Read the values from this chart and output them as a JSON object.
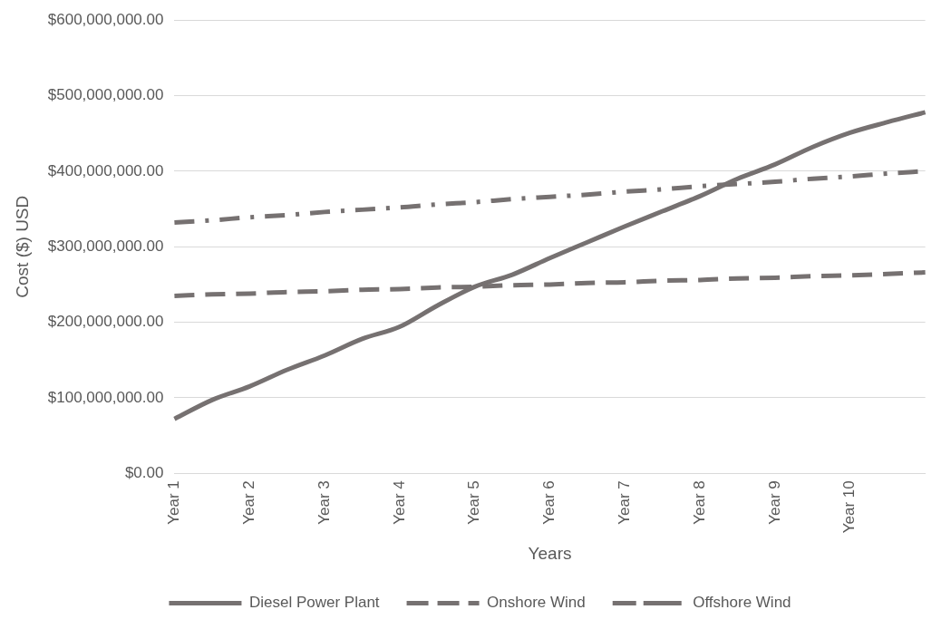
{
  "chart_data": {
    "type": "line",
    "xlabel": "Years",
    "ylabel": "Cost ($) USD",
    "categories": [
      "Year 1",
      null,
      "Year 2",
      null,
      "Year 3",
      null,
      "Year 4",
      null,
      "Year 5",
      null,
      "Year 6",
      null,
      "Year 7",
      null,
      "Year 8",
      null,
      "Year 9",
      null,
      "Year 10",
      null,
      null
    ],
    "series": [
      {
        "name": "Diesel Power Plant",
        "color": "#767171",
        "line_style": "solid",
        "values": [
          72000000,
          97000000,
          115000000,
          137000000,
          156000000,
          178000000,
          194000000,
          222000000,
          247000000,
          263000000,
          285000000,
          306000000,
          327000000,
          347000000,
          367000000,
          390000000,
          409000000,
          432000000,
          451000000,
          465000000,
          478000000
        ]
      },
      {
        "name": "Onshore Wind",
        "color": "#767171",
        "line_style": "dashed",
        "values": [
          235000000,
          237000000,
          238000000,
          240000000,
          241000000,
          243000000,
          244000000,
          246000000,
          247000000,
          249000000,
          250000000,
          252000000,
          253000000,
          255000000,
          256000000,
          258000000,
          259000000,
          261000000,
          262000000,
          264000000,
          266000000
        ]
      },
      {
        "name": "Offshore Wind",
        "color": "#767171",
        "line_style": "dashdot",
        "values": [
          332000000,
          335000000,
          339000000,
          342000000,
          346000000,
          349000000,
          352000000,
          356000000,
          359000000,
          363000000,
          366000000,
          369000000,
          373000000,
          376000000,
          380000000,
          383000000,
          386000000,
          390000000,
          393000000,
          397000000,
          400000000
        ]
      }
    ],
    "ylim": [
      0,
      600000000
    ],
    "yticks": [
      {
        "value": 0,
        "label": "$0.00"
      },
      {
        "value": 100000000,
        "label": "$100,000,000.00"
      },
      {
        "value": 200000000,
        "label": "$200,000,000.00"
      },
      {
        "value": 300000000,
        "label": "$300,000,000.00"
      },
      {
        "value": 400000000,
        "label": "$400,000,000.00"
      },
      {
        "value": 500000000,
        "label": "$500,000,000.00"
      },
      {
        "value": 600000000,
        "label": "$600,000,000.00"
      }
    ],
    "grid": "y",
    "legend": "bottom",
    "marker": "none"
  }
}
